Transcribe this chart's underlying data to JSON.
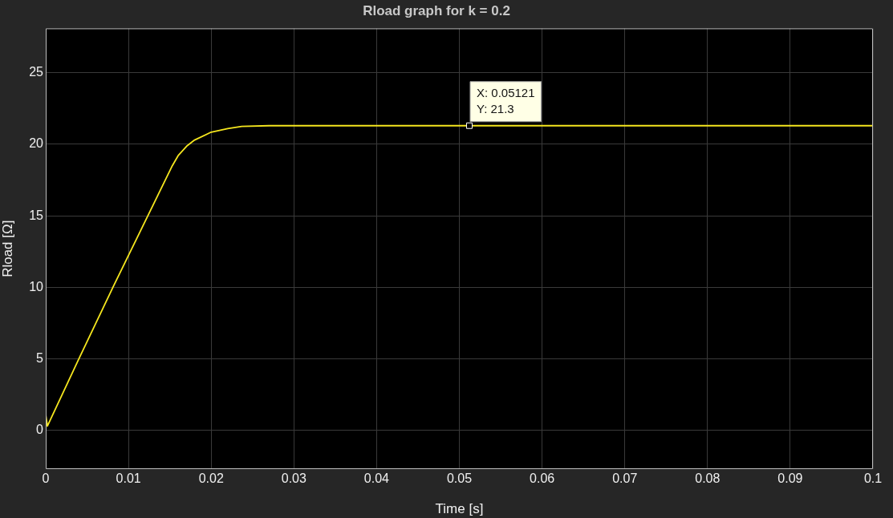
{
  "chart_data": {
    "type": "line",
    "title": "Rload graph for k = 0.2",
    "xlabel": "Time [s]",
    "ylabel": "Rload [Ω]",
    "x": [
      0,
      0.0002,
      0.004,
      0.0082,
      0.0153,
      0.016,
      0.0171,
      0.018,
      0.02,
      0.022,
      0.0237,
      0.027,
      0.05121,
      0.1
    ],
    "series": [
      {
        "color": "#f5e61e",
        "values": [
          1.1,
          0.3,
          5.0,
          10.1,
          18.5,
          19.2,
          19.9,
          20.3,
          20.85,
          21.1,
          21.25,
          21.3,
          21.3,
          21.3
        ]
      }
    ],
    "xlim": [
      0,
      0.1
    ],
    "xticks": [
      0,
      0.01,
      0.02,
      0.03,
      0.04,
      0.05,
      0.06,
      0.07,
      0.08,
      0.09,
      0.1
    ],
    "ylim": [
      -2.7,
      28.1
    ],
    "yticks": [
      0,
      5,
      10,
      15,
      20,
      25
    ],
    "annotations": [
      {
        "text": "X: 0.05121\nY: 21.3",
        "x": 0.05121,
        "y": 21.3
      }
    ],
    "grid": true,
    "legend": false,
    "marker": "none",
    "line_style": "solid"
  }
}
